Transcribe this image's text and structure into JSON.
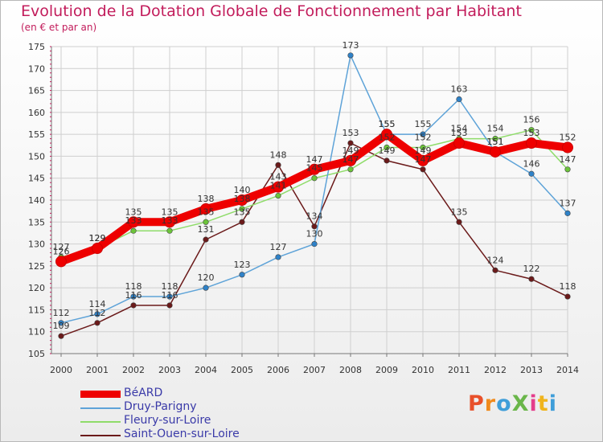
{
  "header": {
    "title": "Evolution de la Dotation Globale de Fonctionnement par Habitant",
    "subtitle": "(en € et par an)"
  },
  "brand": {
    "text": "ProXiti",
    "colors": [
      "#e8502a",
      "#f08a1c",
      "#3f9ed9",
      "#6ab64a",
      "#e43d8c",
      "#f0b41c",
      "#3f9ed9"
    ]
  },
  "chart_data": {
    "type": "line",
    "title": "Evolution de la Dotation Globale de Fonctionnement par Habitant",
    "subtitle": "(en € et par an)",
    "xlabel": "",
    "ylabel": "",
    "ylim": [
      105,
      175
    ],
    "y_ticks": [
      105,
      110,
      115,
      120,
      125,
      130,
      135,
      140,
      145,
      150,
      155,
      160,
      165,
      170,
      175
    ],
    "categories": [
      "2000",
      "2001",
      "2002",
      "2003",
      "2004",
      "2005",
      "2006",
      "2007",
      "2008",
      "2009",
      "2010",
      "2011",
      "2012",
      "2013",
      "2014"
    ],
    "grid": true,
    "legend_position": "bottom-left",
    "series": [
      {
        "name": "Saint-Ouen-sur-Loire",
        "color": "#6b1a1a",
        "marker_color": "#6b1a1a",
        "values": [
          109,
          112,
          116,
          116,
          131,
          135,
          148,
          134,
          153,
          149,
          147,
          135,
          124,
          122,
          118
        ],
        "labels": [
          "109",
          "112",
          "116",
          "116",
          "131",
          "135",
          "148",
          "134",
          "153",
          "149",
          "147",
          "135",
          "124",
          "122",
          "118"
        ]
      },
      {
        "name": "Fleury-sur-Loire",
        "color": "#8fdc6a",
        "marker_color": "#6cc43a",
        "values": [
          127,
          129,
          133,
          133,
          135,
          138,
          141,
          145,
          147,
          152,
          152,
          154,
          154,
          156,
          147
        ],
        "labels": [
          "127",
          "129",
          "133",
          "133",
          "135",
          "138",
          "141",
          "145",
          "147",
          "152",
          "152",
          "154",
          "154",
          "156",
          "147"
        ]
      },
      {
        "name": "Druy-Parigny",
        "color": "#5ea3d8",
        "marker_color": "#2f82c8",
        "values": [
          112,
          114,
          118,
          118,
          120,
          123,
          127,
          130,
          173,
          155,
          155,
          163,
          151,
          146,
          137
        ],
        "labels": [
          "112",
          "114",
          "118",
          "118",
          "120",
          "123",
          "127",
          "130",
          "173",
          "155",
          "155",
          "163",
          "151",
          "146",
          "137"
        ]
      },
      {
        "name": "BéARD",
        "color": "#ee0000",
        "marker_color": "#ee0000",
        "values": [
          126,
          129,
          135,
          135,
          138,
          140,
          143,
          147,
          149,
          155,
          149,
          153,
          151,
          153,
          152
        ],
        "labels": [
          "126",
          "129",
          "135",
          "135",
          "138",
          "140",
          "143",
          "147",
          "149",
          "155",
          "149",
          "153",
          "151",
          "153",
          "152"
        ]
      }
    ],
    "legend": [
      "BéARD",
      "Druy-Parigny",
      "Fleury-sur-Loire",
      "Saint-Ouen-sur-Loire"
    ]
  }
}
